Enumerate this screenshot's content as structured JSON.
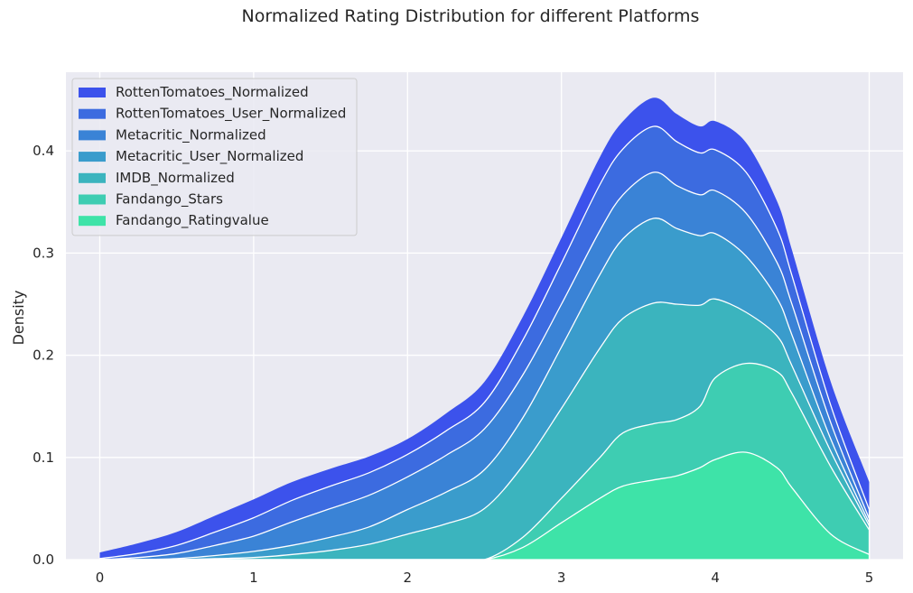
{
  "chart_data": {
    "type": "area",
    "title": "Normalized Rating Distribution for different Platforms",
    "xlabel": "",
    "ylabel": "Density",
    "xlim": [
      -0.22,
      5.22
    ],
    "ylim": [
      0,
      0.477
    ],
    "xticks": [
      0,
      1,
      2,
      3,
      4,
      5
    ],
    "yticks": [
      0.0,
      0.1,
      0.2,
      0.3,
      0.4
    ],
    "stacked": true,
    "grid": true,
    "legend_position": "top-left",
    "x": [
      0,
      0.25,
      0.5,
      0.75,
      1.0,
      1.25,
      1.5,
      1.75,
      2.0,
      2.25,
      2.5,
      2.75,
      3.0,
      3.25,
      3.4,
      3.6,
      3.75,
      3.9,
      4.0,
      4.2,
      4.4,
      4.5,
      4.75,
      5.0
    ],
    "series": [
      {
        "name": "Fandango_Ratingvalue",
        "color": "#3ee3a8",
        "values": [
          0,
          0,
          0,
          0,
          0,
          0,
          0,
          0,
          0,
          0,
          0,
          0.012,
          0.036,
          0.06,
          0.072,
          0.078,
          0.082,
          0.09,
          0.098,
          0.105,
          0.09,
          0.07,
          0.025,
          0.005
        ]
      },
      {
        "name": "Fandango_Stars",
        "color": "#3ecdb2",
        "values": [
          0,
          0,
          0,
          0,
          0,
          0,
          0,
          0,
          0,
          0,
          0,
          0.01,
          0.024,
          0.04,
          0.052,
          0.055,
          0.055,
          0.06,
          0.08,
          0.087,
          0.094,
          0.092,
          0.066,
          0.024
        ]
      },
      {
        "name": "IMDB_Normalized",
        "color": "#3bb4be",
        "values": [
          0,
          0,
          0,
          0.001,
          0.002,
          0.005,
          0.009,
          0.015,
          0.025,
          0.035,
          0.05,
          0.07,
          0.088,
          0.107,
          0.112,
          0.118,
          0.113,
          0.099,
          0.077,
          0.05,
          0.035,
          0.027,
          0.015,
          0.004
        ]
      },
      {
        "name": "Metacritic_User_Normalized",
        "color": "#3a9ccc",
        "values": [
          0,
          0,
          0.001,
          0.003,
          0.006,
          0.009,
          0.013,
          0.017,
          0.024,
          0.031,
          0.038,
          0.047,
          0.06,
          0.072,
          0.078,
          0.083,
          0.074,
          0.068,
          0.064,
          0.055,
          0.037,
          0.03,
          0.012,
          0.003
        ]
      },
      {
        "name": "Metacritic_Normalized",
        "color": "#3a83d6",
        "values": [
          0,
          0.002,
          0.005,
          0.01,
          0.015,
          0.023,
          0.028,
          0.031,
          0.032,
          0.036,
          0.04,
          0.042,
          0.042,
          0.043,
          0.043,
          0.045,
          0.042,
          0.04,
          0.042,
          0.042,
          0.035,
          0.03,
          0.016,
          0.004
        ]
      },
      {
        "name": "RottenTomatoes_User_Normalized",
        "color": "#3c6be0",
        "values": [
          0.001,
          0.004,
          0.008,
          0.013,
          0.018,
          0.021,
          0.022,
          0.022,
          0.022,
          0.024,
          0.026,
          0.034,
          0.04,
          0.045,
          0.045,
          0.045,
          0.043,
          0.041,
          0.04,
          0.04,
          0.033,
          0.028,
          0.017,
          0.009
        ]
      },
      {
        "name": "RottenTomatoes_Normalized",
        "color": "#3c52ec",
        "values": [
          0.006,
          0.01,
          0.013,
          0.016,
          0.018,
          0.018,
          0.017,
          0.016,
          0.015,
          0.017,
          0.02,
          0.023,
          0.025,
          0.027,
          0.027,
          0.028,
          0.027,
          0.026,
          0.028,
          0.029,
          0.027,
          0.025,
          0.023,
          0.027
        ]
      }
    ]
  }
}
